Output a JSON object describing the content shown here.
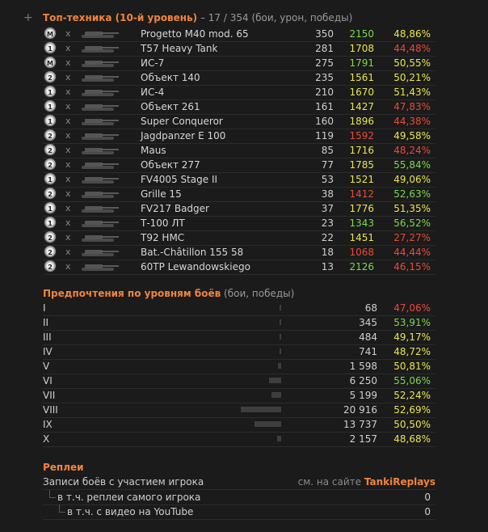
{
  "top_tanks": {
    "plus": "+",
    "title": "Топ-техника (10-й уровень)",
    "subtitle": "– 17 / 354 (бои, урон, победы)",
    "rows": [
      {
        "name": "Progetto M40 mod. 65",
        "battles": "350",
        "damage": "2150",
        "winrate": "48,86%",
        "mark": "M",
        "dmg_color": "#7bd94c",
        "wr_color": "#e6e64e"
      },
      {
        "name": "T57 Heavy Tank",
        "battles": "281",
        "damage": "1708",
        "winrate": "44,48%",
        "mark": "1",
        "dmg_color": "#e6e64e",
        "wr_color": "#e84a3a"
      },
      {
        "name": "ИС-7",
        "battles": "275",
        "damage": "1791",
        "winrate": "50,55%",
        "mark": "M",
        "dmg_color": "#7bd94c",
        "wr_color": "#e6e64e"
      },
      {
        "name": "Объект 140",
        "battles": "235",
        "damage": "1561",
        "winrate": "50,21%",
        "mark": "2",
        "dmg_color": "#e6e64e",
        "wr_color": "#e6e64e"
      },
      {
        "name": "ИС-4",
        "battles": "210",
        "damage": "1670",
        "winrate": "51,43%",
        "mark": "1",
        "dmg_color": "#e6e64e",
        "wr_color": "#e6e64e"
      },
      {
        "name": "Объект 261",
        "battles": "161",
        "damage": "1427",
        "winrate": "47,83%",
        "mark": "1",
        "dmg_color": "#e6e64e",
        "wr_color": "#e84a3a"
      },
      {
        "name": "Super Conqueror",
        "battles": "160",
        "damage": "1896",
        "winrate": "44,38%",
        "mark": "1",
        "dmg_color": "#e6e64e",
        "wr_color": "#e84a3a"
      },
      {
        "name": "Jagdpanzer E 100",
        "battles": "119",
        "damage": "1592",
        "winrate": "49,58%",
        "mark": "2",
        "dmg_color": "#e84a3a",
        "wr_color": "#e6e64e"
      },
      {
        "name": "Maus",
        "battles": "85",
        "damage": "1716",
        "winrate": "48,24%",
        "mark": "2",
        "dmg_color": "#e6e64e",
        "wr_color": "#e84a3a"
      },
      {
        "name": "Объект 277",
        "battles": "77",
        "damage": "1785",
        "winrate": "55,84%",
        "mark": "2",
        "dmg_color": "#e6e64e",
        "wr_color": "#7bd94c"
      },
      {
        "name": "FV4005 Stage II",
        "battles": "53",
        "damage": "1521",
        "winrate": "49,06%",
        "mark": "1",
        "dmg_color": "#e6e64e",
        "wr_color": "#e6e64e"
      },
      {
        "name": "Grille 15",
        "battles": "38",
        "damage": "1412",
        "winrate": "52,63%",
        "mark": "2",
        "dmg_color": "#e84a3a",
        "wr_color": "#7bd94c"
      },
      {
        "name": "FV217 Badger",
        "battles": "37",
        "damage": "1776",
        "winrate": "51,35%",
        "mark": "1",
        "dmg_color": "#e6e64e",
        "wr_color": "#e6e64e"
      },
      {
        "name": "Т-100 ЛТ",
        "battles": "23",
        "damage": "1343",
        "winrate": "56,52%",
        "mark": "1",
        "dmg_color": "#7bd94c",
        "wr_color": "#7bd94c"
      },
      {
        "name": "T92 HMC",
        "battles": "22",
        "damage": "1451",
        "winrate": "27,27%",
        "mark": "2",
        "dmg_color": "#e6e64e",
        "wr_color": "#e84a3a"
      },
      {
        "name": "Bat.-Châtillon 155 58",
        "battles": "18",
        "damage": "1068",
        "winrate": "44,44%",
        "mark": "2",
        "dmg_color": "#e84a3a",
        "wr_color": "#e84a3a"
      },
      {
        "name": "60TP Lewandowskiego",
        "battles": "13",
        "damage": "2126",
        "winrate": "46,15%",
        "mark": "2",
        "dmg_color": "#7bd94c",
        "wr_color": "#e84a3a"
      }
    ]
  },
  "levels": {
    "title": "Предпочтения по уровням боёв",
    "subtitle": "(бои, победы)",
    "rows": [
      {
        "level": "I",
        "battles": "68",
        "winrate": "47,06%",
        "share": 0.003,
        "wr_color": "#e84a3a"
      },
      {
        "level": "II",
        "battles": "345",
        "winrate": "53,91%",
        "share": 0.017,
        "wr_color": "#7bd94c"
      },
      {
        "level": "III",
        "battles": "484",
        "winrate": "49,17%",
        "share": 0.023,
        "wr_color": "#e6e64e"
      },
      {
        "level": "IV",
        "battles": "741",
        "winrate": "48,72%",
        "share": 0.035,
        "wr_color": "#e6e64e"
      },
      {
        "level": "V",
        "battles": "1 598",
        "winrate": "50,81%",
        "share": 0.076,
        "wr_color": "#e6e64e"
      },
      {
        "level": "VI",
        "battles": "6 250",
        "winrate": "55,06%",
        "share": 0.299,
        "wr_color": "#7bd94c"
      },
      {
        "level": "VII",
        "battles": "5 199",
        "winrate": "52,24%",
        "share": 0.249,
        "wr_color": "#e6e64e"
      },
      {
        "level": "VIII",
        "battles": "20 916",
        "winrate": "52,69%",
        "share": 1.0,
        "wr_color": "#e6e64e"
      },
      {
        "level": "IX",
        "battles": "13 737",
        "winrate": "50,50%",
        "share": 0.657,
        "wr_color": "#e6e64e"
      },
      {
        "level": "X",
        "battles": "2 157",
        "winrate": "48,68%",
        "share": 0.103,
        "wr_color": "#e6e64e"
      }
    ]
  },
  "replays": {
    "title": "Реплеи",
    "row1_label": "Записи боёв с участием игрока",
    "row1_site_prefix": "см. на сайте",
    "row1_site": "TankiReplays",
    "row2_label": "в т.ч. реплеи самого игрока",
    "row2_value": "0",
    "row3_label": "в т.ч. с видео на YouTube",
    "row3_value": "0"
  }
}
